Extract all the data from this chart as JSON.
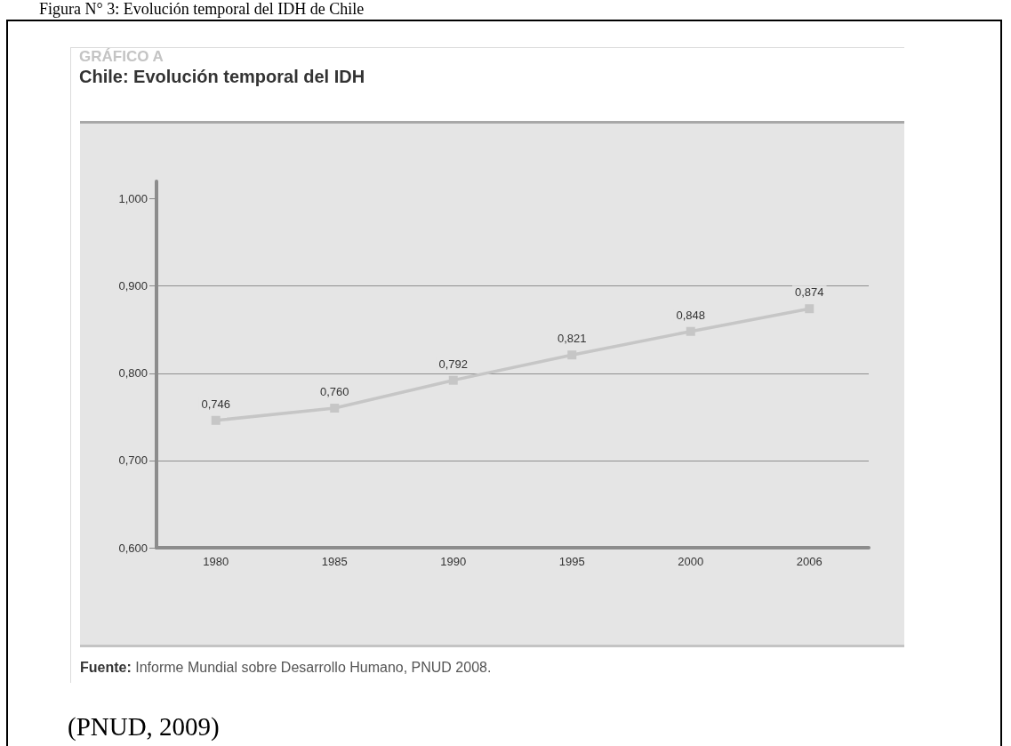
{
  "chart_data": {
    "type": "line",
    "title": "Chile: Evolución temporal del IDH",
    "annotations": [
      "Figura N° 3: Evolución temporal del IDH de Chile",
      "GRÁFICO A",
      "Fuente: Informe Mundial sobre Desarrollo Humano, PNUD 2008.",
      "(PNUD, 2009)"
    ],
    "categories": [
      "1980",
      "1985",
      "1990",
      "1995",
      "2000",
      "2006"
    ],
    "series": [
      {
        "color": "#c6c6c6",
        "values": [
          0.746,
          0.76,
          0.792,
          0.821,
          0.848,
          0.874
        ],
        "value_labels": [
          "0,746",
          "0,760",
          "0,792",
          "0,821",
          "0,848",
          "0,874"
        ]
      }
    ],
    "ylim": [
      0.6,
      1.02
    ],
    "yticks": [
      {
        "value": 0.6,
        "label": "0,600"
      },
      {
        "value": 0.7,
        "label": "0,700"
      },
      {
        "value": 0.8,
        "label": "0,800"
      },
      {
        "value": 0.9,
        "label": "0,900"
      },
      {
        "value": 1.0,
        "label": "1,000"
      }
    ],
    "grid": "y",
    "marker": "square",
    "line_style": "solid"
  }
}
